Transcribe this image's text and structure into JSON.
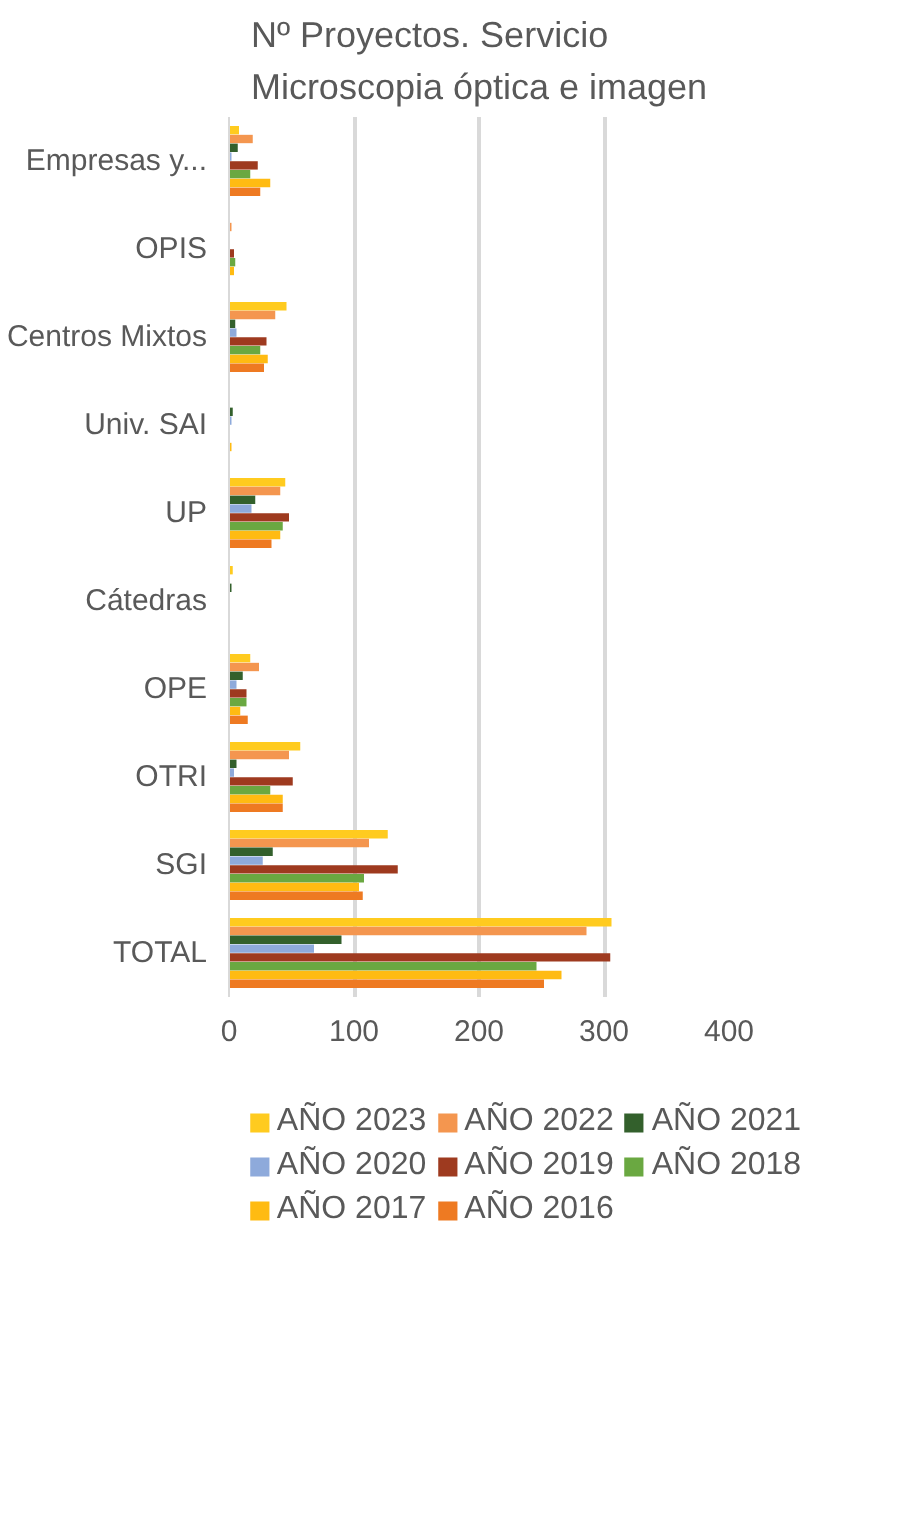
{
  "chart_data": {
    "type": "bar",
    "orientation": "horizontal",
    "title": "Nº Proyectos. Servicio\nMicroscopia óptica e imagen",
    "categories": [
      "Empresas y...",
      "OPIS",
      "Centros Mixtos",
      "Univ. SAI",
      "UP",
      "Cátedras",
      "OPE",
      "OTRI",
      "SGI",
      "TOTAL"
    ],
    "series": [
      {
        "name": "AÑO 2023",
        "color": "#ffcb1f",
        "values": [
          8,
          0,
          46,
          null,
          45,
          3,
          17,
          57,
          127,
          306
        ]
      },
      {
        "name": "AÑO 2022",
        "color": "#f4964f",
        "values": [
          19,
          2,
          37,
          null,
          41,
          0,
          24,
          48,
          112,
          286
        ]
      },
      {
        "name": "AÑO 2021",
        "color": "#33602c",
        "values": [
          7,
          0,
          5,
          3,
          21,
          2,
          11,
          6,
          35,
          90
        ]
      },
      {
        "name": "AÑO 2020",
        "color": "#8eaadb",
        "values": [
          2,
          0,
          6,
          2,
          18,
          null,
          6,
          4,
          27,
          68
        ]
      },
      {
        "name": "AÑO 2019",
        "color": "#9e3a1f",
        "values": [
          23,
          4,
          30,
          0,
          48,
          0,
          14,
          51,
          135,
          305
        ]
      },
      {
        "name": "AÑO 2018",
        "color": "#6aa841",
        "values": [
          17,
          5,
          25,
          0,
          43,
          0,
          14,
          33,
          108,
          246
        ]
      },
      {
        "name": "AÑO 2017",
        "color": "#ffbb12",
        "values": [
          33,
          4,
          31,
          2,
          41,
          0,
          9,
          43,
          104,
          266
        ]
      },
      {
        "name": "AÑO 2016",
        "color": "#ee7a22",
        "values": [
          25,
          0,
          28,
          0,
          34,
          0,
          15,
          43,
          107,
          252
        ]
      }
    ],
    "xlim": [
      0,
      400
    ],
    "xticks": [
      0,
      100,
      200,
      300,
      400
    ],
    "grid": "x",
    "legend": "bottom"
  }
}
